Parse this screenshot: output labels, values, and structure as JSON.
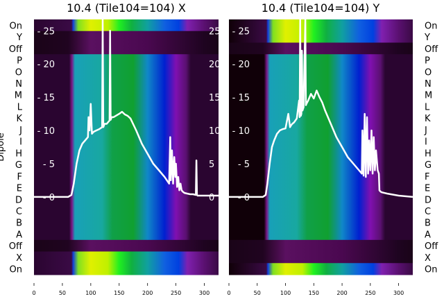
{
  "chart_data": [
    {
      "type": "heatmap",
      "title": "10.4 (Tile104=104) X",
      "ylabel": "Dipole",
      "xlim": [
        0,
        325
      ],
      "x_ticks": [
        0,
        50,
        100,
        150,
        200,
        250,
        300
      ],
      "row_labels": [
        "On",
        "Y",
        "Off",
        "P",
        "O",
        "N",
        "M",
        "L",
        "K",
        "J",
        "I",
        "H",
        "G",
        "F",
        "E",
        "D",
        "C",
        "B",
        "A",
        "Off",
        "X",
        "On"
      ],
      "overlay_y_ticks": [
        0,
        5,
        10,
        15,
        20,
        25
      ],
      "overlay_ylim": [
        -11.7,
        26.7
      ],
      "active_pol_row": "X",
      "line": {
        "x": [
          0,
          60,
          66,
          70,
          75,
          80,
          85,
          90,
          95,
          96,
          98,
          100,
          102,
          105,
          110,
          115,
          120,
          121,
          122,
          123,
          124,
          128,
          133,
          134,
          135,
          136,
          137,
          140,
          150,
          155,
          160,
          165,
          170,
          180,
          190,
          200,
          210,
          220,
          230,
          238,
          240,
          241,
          243,
          245,
          247,
          249,
          250,
          252,
          254,
          256,
          258,
          260,
          262,
          265,
          270,
          275,
          280,
          285,
          286,
          287,
          288,
          290,
          300,
          325
        ],
        "y": [
          0,
          0,
          0.3,
          2,
          5,
          7,
          8,
          8.5,
          9,
          12,
          10,
          14,
          9.5,
          9.8,
          10,
          10.2,
          10.5,
          27,
          10.5,
          10.7,
          11,
          11,
          11.5,
          25,
          11.6,
          11.8,
          12,
          12,
          12.5,
          12.8,
          12.4,
          12.2,
          11.8,
          10,
          8,
          6.5,
          5,
          4,
          3,
          2,
          9,
          2.5,
          7,
          2,
          6,
          3,
          5,
          1.5,
          3,
          1,
          2,
          1,
          0.8,
          0.6,
          0.5,
          0.4,
          0.4,
          0.3,
          5.5,
          0.3,
          0.2,
          0.2,
          0.2,
          0.2
        ]
      }
    },
    {
      "type": "heatmap",
      "title": "10.4 (Tile104=104) Y",
      "xlim": [
        0,
        325
      ],
      "x_ticks": [
        0,
        50,
        100,
        150,
        200,
        250,
        300
      ],
      "row_labels": [
        "On",
        "Y",
        "Off",
        "P",
        "O",
        "N",
        "M",
        "L",
        "K",
        "J",
        "I",
        "H",
        "G",
        "F",
        "E",
        "D",
        "C",
        "B",
        "A",
        "Off",
        "X",
        "On"
      ],
      "overlay_y_ticks": [
        0,
        5,
        10,
        15,
        20,
        25
      ],
      "overlay_ylim": [
        -11.7,
        26.7
      ],
      "active_pol_row": "Y",
      "line": {
        "x": [
          0,
          60,
          65,
          68,
          72,
          76,
          80,
          85,
          90,
          95,
          100,
          105,
          108,
          110,
          112,
          115,
          120,
          124,
          125,
          126,
          127,
          128,
          129,
          130,
          132,
          135,
          136,
          137,
          140,
          145,
          150,
          155,
          160,
          165,
          170,
          180,
          190,
          200,
          210,
          220,
          230,
          235,
          236,
          238,
          240,
          242,
          244,
          246,
          248,
          250,
          252,
          254,
          256,
          258,
          260,
          263,
          265,
          266,
          268,
          270,
          280,
          300,
          325
        ],
        "y": [
          0,
          0,
          0.3,
          2,
          5,
          7.5,
          8.5,
          9.5,
          10,
          10.2,
          10.3,
          12.5,
          10.5,
          10.8,
          11,
          11.2,
          11.8,
          14.5,
          12,
          28,
          12.2,
          12.5,
          22,
          13,
          13.5,
          28,
          13.8,
          14,
          14.5,
          15.5,
          14.8,
          16,
          15,
          14.2,
          13,
          11,
          9,
          7.5,
          6,
          5,
          4,
          3.5,
          10,
          3.2,
          12.5,
          3,
          12,
          3.5,
          8.5,
          4,
          10,
          3.5,
          9,
          4,
          7,
          4,
          3.5,
          1,
          0.8,
          0.7,
          0.5,
          0.2,
          0
        ]
      }
    }
  ]
}
